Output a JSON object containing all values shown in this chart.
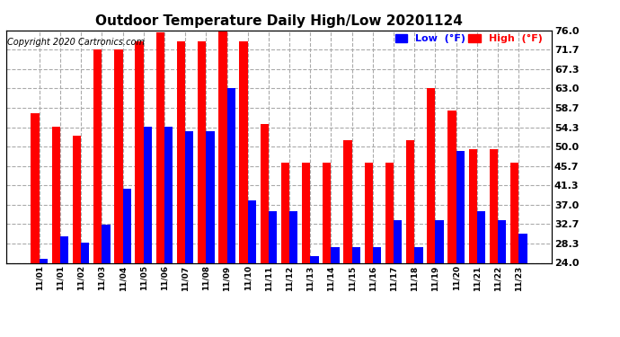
{
  "title": "Outdoor Temperature Daily High/Low 20201124",
  "copyright": "Copyright 2020 Cartronics.com",
  "low_color": "#0000ff",
  "high_color": "#ff0000",
  "background_color": "#ffffff",
  "ylim": [
    24.0,
    76.0
  ],
  "yticks": [
    24.0,
    28.3,
    32.7,
    37.0,
    41.3,
    45.7,
    50.0,
    54.3,
    58.7,
    63.0,
    67.3,
    71.7,
    76.0
  ],
  "dates": [
    "11/01",
    "11/01",
    "11/02",
    "11/03",
    "11/04",
    "11/05",
    "11/06",
    "11/07",
    "11/08",
    "11/09",
    "11/10",
    "11/11",
    "11/12",
    "11/13",
    "11/14",
    "11/15",
    "11/16",
    "11/17",
    "11/18",
    "11/19",
    "11/20",
    "11/21",
    "11/22",
    "11/23"
  ],
  "highs": [
    57.5,
    54.5,
    52.5,
    71.7,
    71.7,
    73.5,
    75.5,
    73.5,
    73.5,
    75.8,
    73.5,
    55.0,
    46.5,
    46.5,
    46.5,
    51.5,
    46.5,
    46.5,
    51.5,
    63.0,
    58.0,
    49.5,
    49.5,
    46.5
  ],
  "lows": [
    25.0,
    30.0,
    28.5,
    32.5,
    40.5,
    54.5,
    54.5,
    53.5,
    53.5,
    63.0,
    38.0,
    35.5,
    35.5,
    25.5,
    27.5,
    27.5,
    27.5,
    33.5,
    27.5,
    33.5,
    49.0,
    35.5,
    33.5,
    30.5
  ],
  "bar_width": 0.4
}
